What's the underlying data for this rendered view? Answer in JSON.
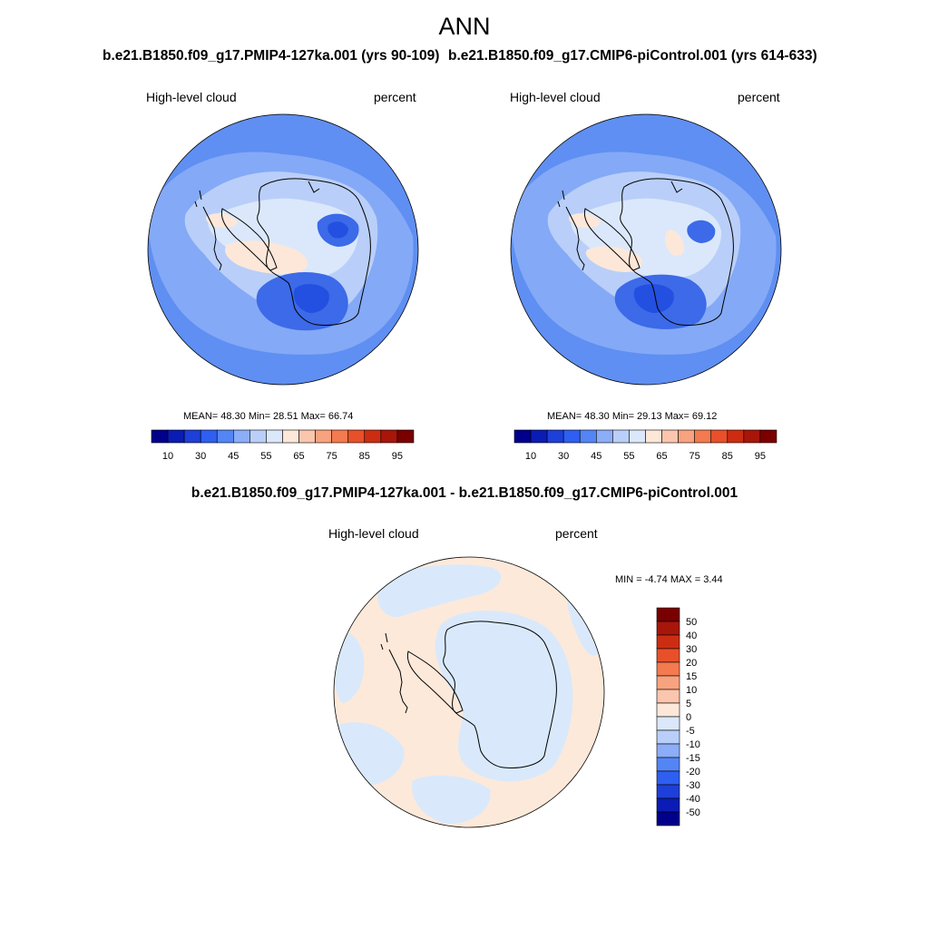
{
  "page": {
    "title": "ANN",
    "diff_title": "b.e21.B1850.f09_g17.PMIP4-127ka.001 - b.e21.B1850.f09_g17.CMIP6-piControl.001"
  },
  "panels": [
    {
      "id": "pmip4",
      "title": "b.e21.B1850.f09_g17.PMIP4-127ka.001 (yrs 90-109)",
      "variable": "High-level cloud",
      "units": "percent",
      "stats": "MEAN=  48.30  Min=  28.51  Max=  66.74"
    },
    {
      "id": "picontrol",
      "title": "b.e21.B1850.f09_g17.CMIP6-piControl.001 (yrs 614-633)",
      "variable": "High-level cloud",
      "units": "percent",
      "stats": "MEAN=  48.30  Min=  29.13  Max=  69.12"
    },
    {
      "id": "difference",
      "variable": "High-level cloud",
      "units": "percent",
      "stats": "MIN =  -4.74 MAX =   3.44"
    }
  ],
  "abs_colorbar": {
    "labels": [
      "10",
      "30",
      "45",
      "55",
      "65",
      "75",
      "85",
      "95"
    ],
    "colors": [
      "#00008b",
      "#0a1cb4",
      "#1e3fd8",
      "#2e5ff0",
      "#5485f5",
      "#8cadf7",
      "#b9cff9",
      "#dbe8fb",
      "#fde7d9",
      "#fbc6ad",
      "#f8a27f",
      "#f47a4f",
      "#e8502a",
      "#cc2d12",
      "#a8160a",
      "#7a0000"
    ]
  },
  "diff_colorbar": {
    "labels": [
      "50",
      "40",
      "30",
      "20",
      "15",
      "10",
      "5",
      "0",
      "-5",
      "-10",
      "-15",
      "-20",
      "-30",
      "-40",
      "-50"
    ],
    "colors": [
      "#7a0000",
      "#a8160a",
      "#cc2d12",
      "#e8502a",
      "#f47a4f",
      "#f8a27f",
      "#fbc6ad",
      "#fde7d9",
      "#dbe8fb",
      "#b9cff9",
      "#8cadf7",
      "#5485f5",
      "#2e5ff0",
      "#1e3fd8",
      "#0a1cb4",
      "#00008b"
    ]
  },
  "map_colors": {
    "ocean_far": "#5f8ff2",
    "ocean_mid": "#84a9f6",
    "level_55": "#b9cff9",
    "level_60": "#dbe8fb",
    "level_65": "#fde7d9",
    "level_40": "#3c6ae8",
    "level_30": "#2350e0",
    "diff_pos": "#fde9da",
    "diff_neg": "#d9e9fb"
  }
}
